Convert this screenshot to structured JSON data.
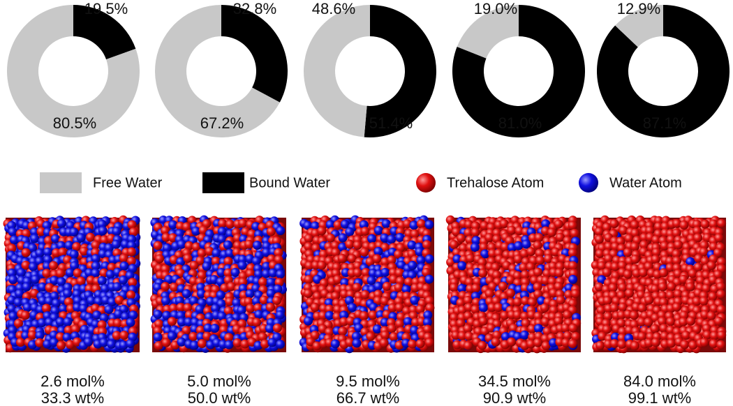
{
  "chart_data": [
    {
      "type": "donut",
      "categories": [
        "Free Water",
        "Bound Water"
      ],
      "values": [
        80.5,
        19.5
      ],
      "value_labels": [
        "80.5%",
        "19.5%"
      ],
      "colors": [
        "#c8c8c8",
        "#000000"
      ]
    },
    {
      "type": "donut",
      "categories": [
        "Free Water",
        "Bound Water"
      ],
      "values": [
        67.2,
        32.8
      ],
      "value_labels": [
        "67.2%",
        "32.8%"
      ],
      "colors": [
        "#c8c8c8",
        "#000000"
      ]
    },
    {
      "type": "donut",
      "categories": [
        "Free Water",
        "Bound Water"
      ],
      "values": [
        48.6,
        51.4
      ],
      "value_labels": [
        "48.6%",
        "51.4%"
      ],
      "colors": [
        "#c8c8c8",
        "#000000"
      ]
    },
    {
      "type": "donut",
      "categories": [
        "Free Water",
        "Bound Water"
      ],
      "values": [
        19.0,
        81.0
      ],
      "value_labels": [
        "19.0%",
        "81.0%"
      ],
      "colors": [
        "#c8c8c8",
        "#000000"
      ]
    },
    {
      "type": "donut",
      "categories": [
        "Free Water",
        "Bound Water"
      ],
      "values": [
        12.9,
        87.1
      ],
      "value_labels": [
        "12.9%",
        "87.1%"
      ],
      "colors": [
        "#c8c8c8",
        "#000000"
      ]
    }
  ],
  "atom_legend": [
    "Trehalose Atom",
    "Water Atom"
  ],
  "panels": [
    {
      "mol": "2.6 mol%",
      "wt": "33.3 wt%"
    },
    {
      "mol": "5.0 mol%",
      "wt": "50.0 wt%"
    },
    {
      "mol": "9.5 mol%",
      "wt": "66.7 wt%"
    },
    {
      "mol": "34.5 mol%",
      "wt": "90.9 wt%"
    },
    {
      "mol": "84.0 mol%",
      "wt": "99.1 wt%"
    }
  ]
}
